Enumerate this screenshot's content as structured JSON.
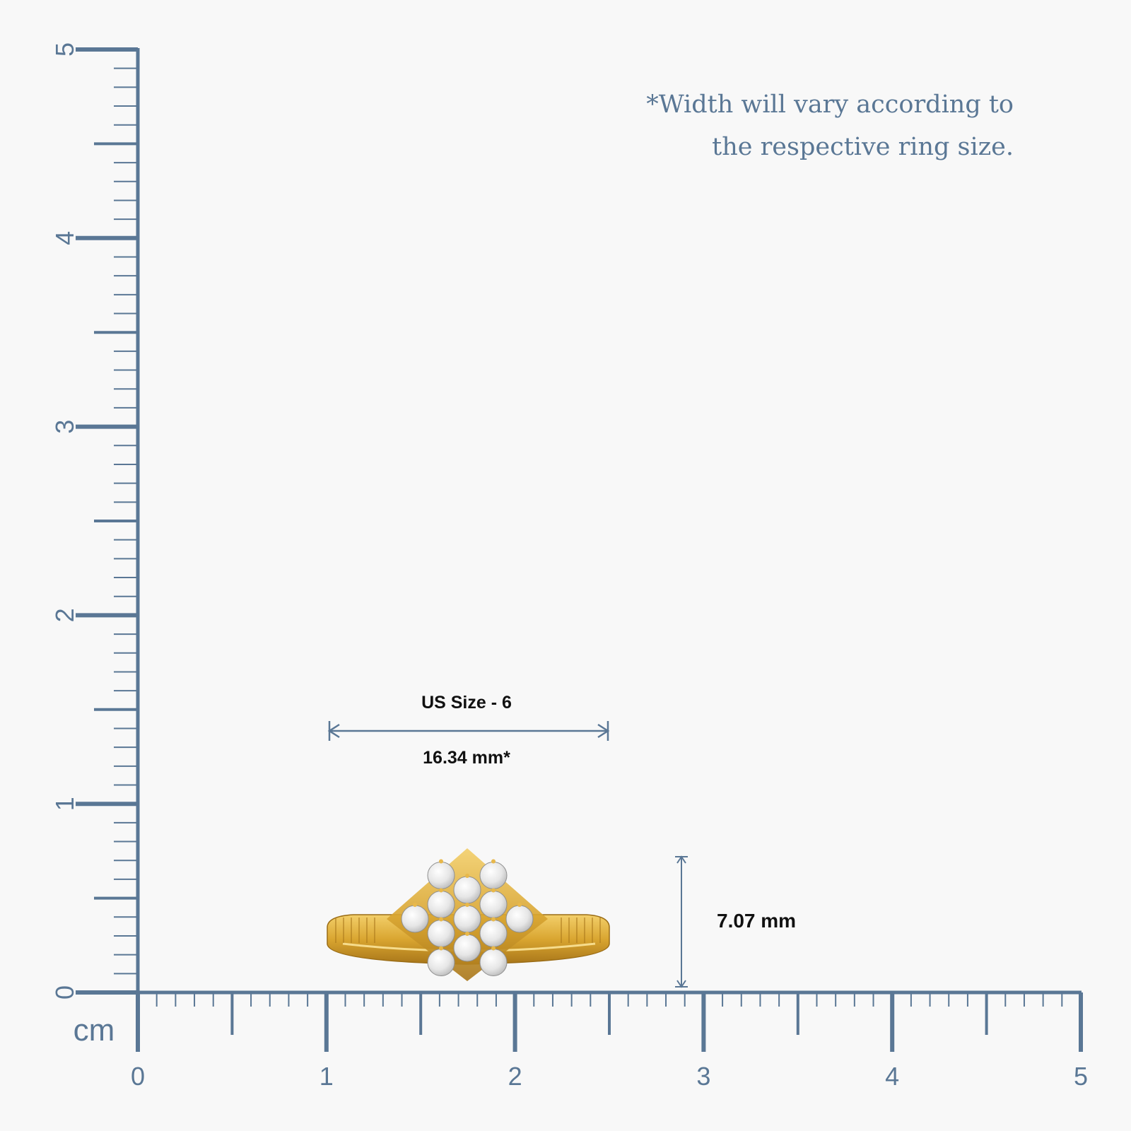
{
  "ruler": {
    "unit": "cm",
    "bottom_ticks": [
      "0",
      "1",
      "2",
      "3",
      "4",
      "5"
    ],
    "left_ticks": [
      "0",
      "1",
      "2",
      "3",
      "4",
      "5"
    ],
    "color": "#5a7795"
  },
  "note": {
    "line1": "*Width will vary according to",
    "line2": "the respective ring size."
  },
  "width_measure": {
    "size_label": "US Size - 6",
    "value_label": "16.34 mm*"
  },
  "height_measure": {
    "value_label": "7.07 mm"
  },
  "product": {
    "metal_color": "#d9a530",
    "stone_color": "#f4f4f4"
  }
}
